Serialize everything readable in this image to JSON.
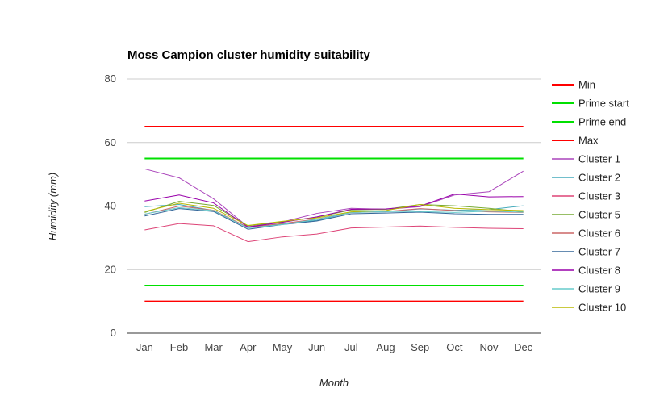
{
  "chart_data": {
    "type": "line",
    "title": "Moss Campion cluster humidity suitability",
    "xlabel": "Month",
    "ylabel": "Humidity (mm)",
    "ylim": [
      0,
      80
    ],
    "y_ticks": [
      0,
      20,
      40,
      60,
      80
    ],
    "grid": true,
    "legend_position": "right",
    "categories": [
      "Jan",
      "Feb",
      "Mar",
      "Apr",
      "May",
      "Jun",
      "Jul",
      "Aug",
      "Sep",
      "Oct",
      "Nov",
      "Dec"
    ],
    "series": [
      {
        "name": "Min",
        "color": "#ff0000",
        "width": 2,
        "values": [
          10,
          10,
          10,
          10,
          10,
          10,
          10,
          10,
          10,
          10,
          10,
          10
        ]
      },
      {
        "name": "Prime start",
        "color": "#00e000",
        "width": 2,
        "values": [
          15,
          15,
          15,
          15,
          15,
          15,
          15,
          15,
          15,
          15,
          15,
          15
        ]
      },
      {
        "name": "Prime end",
        "color": "#00e000",
        "width": 2,
        "values": [
          55,
          55,
          55,
          55,
          55,
          55,
          55,
          55,
          55,
          55,
          55,
          55
        ]
      },
      {
        "name": "Max",
        "color": "#ff0000",
        "width": 2,
        "values": [
          65,
          65,
          65,
          65,
          65,
          65,
          65,
          65,
          65,
          65,
          65,
          65
        ]
      },
      {
        "name": "Cluster 1",
        "color": "#aa44bb",
        "width": 1,
        "values": [
          51.7,
          48.9,
          42.3,
          33.5,
          35.0,
          37.7,
          39.3,
          39.0,
          39.8,
          43.5,
          44.5,
          51.0
        ]
      },
      {
        "name": "Cluster 2",
        "color": "#44aabb",
        "width": 1,
        "values": [
          39.8,
          40.5,
          38.6,
          33.2,
          34.4,
          35.5,
          38.0,
          38.2,
          39.1,
          38.7,
          38.9,
          40.1
        ]
      },
      {
        "name": "Cluster 3",
        "color": "#dd4477",
        "width": 1,
        "values": [
          32.5,
          34.5,
          33.8,
          28.8,
          30.3,
          31.2,
          33.1,
          33.4,
          33.7,
          33.3,
          33.0,
          32.9
        ]
      },
      {
        "name": "Cluster 5",
        "color": "#77aa33",
        "width": 1,
        "values": [
          38.0,
          41.5,
          40.2,
          33.8,
          35.0,
          36.5,
          38.8,
          39.0,
          40.5,
          40.1,
          39.3,
          38.2
        ]
      },
      {
        "name": "Cluster 6",
        "color": "#cc6666",
        "width": 1,
        "values": [
          37.4,
          40.0,
          38.7,
          33.3,
          34.5,
          35.9,
          38.0,
          38.3,
          39.2,
          38.6,
          38.2,
          38.0
        ]
      },
      {
        "name": "Cluster 7",
        "color": "#336699",
        "width": 1,
        "values": [
          36.9,
          39.2,
          38.3,
          32.7,
          34.2,
          35.3,
          37.6,
          37.8,
          38.1,
          37.6,
          37.4,
          37.4
        ]
      },
      {
        "name": "Cluster 8",
        "color": "#9900aa",
        "width": 1,
        "values": [
          41.6,
          43.5,
          41.0,
          33.4,
          34.9,
          36.6,
          39.0,
          39.1,
          40.0,
          43.8,
          42.9,
          43.0
        ]
      },
      {
        "name": "Cluster 9",
        "color": "#66cccc",
        "width": 1,
        "values": [
          37.5,
          39.5,
          38.6,
          33.1,
          34.2,
          35.8,
          38.0,
          38.3,
          38.3,
          38.0,
          38.4,
          38.1
        ]
      },
      {
        "name": "Cluster 10",
        "color": "#b8b800",
        "width": 1,
        "values": [
          38.3,
          40.9,
          39.3,
          33.9,
          35.2,
          36.3,
          38.2,
          38.6,
          40.5,
          39.3,
          38.9,
          38.6
        ]
      }
    ]
  }
}
